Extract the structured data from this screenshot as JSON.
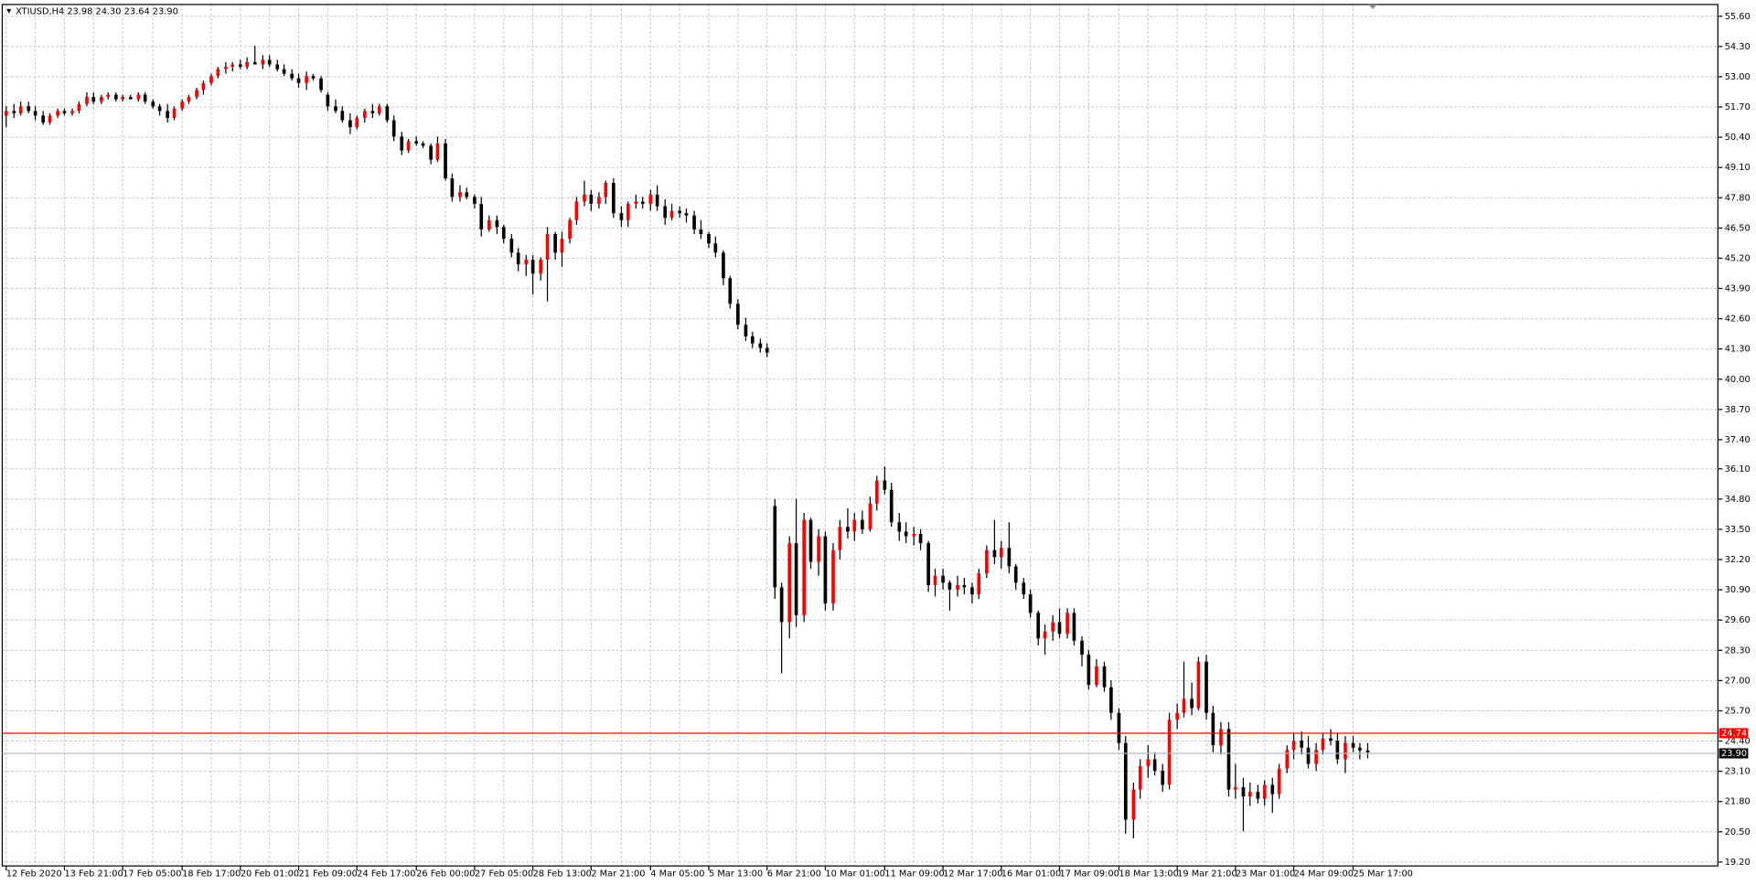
{
  "chart_data": {
    "type": "candlestick",
    "title": "XTIUSD,H4 23.98 24.30 23.64 23.90",
    "up_color": "#ff0000",
    "down_color": "#000000",
    "wick_color": "#000000",
    "grid": true,
    "ylim": [
      19.01,
      56.08
    ],
    "yticks": [
      {
        "value": 55.6,
        "label": "55.60"
      },
      {
        "value": 54.3,
        "label": "54.30"
      },
      {
        "value": 53.0,
        "label": "53.00"
      },
      {
        "value": 51.7,
        "label": "51.70"
      },
      {
        "value": 50.4,
        "label": "50.40"
      },
      {
        "value": 49.1,
        "label": "49.10"
      },
      {
        "value": 47.8,
        "label": "47.80"
      },
      {
        "value": 46.5,
        "label": "46.50"
      },
      {
        "value": 45.2,
        "label": "45.20"
      },
      {
        "value": 43.9,
        "label": "43.90"
      },
      {
        "value": 42.6,
        "label": "42.60"
      },
      {
        "value": 41.3,
        "label": "41.30"
      },
      {
        "value": 40.0,
        "label": "40.00"
      },
      {
        "value": 38.7,
        "label": "38.70"
      },
      {
        "value": 37.4,
        "label": "37.40"
      },
      {
        "value": 36.1,
        "label": "36.10"
      },
      {
        "value": 34.8,
        "label": "34.80"
      },
      {
        "value": 33.5,
        "label": "33.50"
      },
      {
        "value": 32.2,
        "label": "32.20"
      },
      {
        "value": 30.9,
        "label": "30.90"
      },
      {
        "value": 29.6,
        "label": "29.60"
      },
      {
        "value": 28.3,
        "label": "28.30"
      },
      {
        "value": 27.0,
        "label": "27.00"
      },
      {
        "value": 25.7,
        "label": "25.70"
      },
      {
        "value": 24.4,
        "label": "24.40"
      },
      {
        "value": 23.1,
        "label": "23.10"
      },
      {
        "value": 21.8,
        "label": "21.80"
      },
      {
        "value": 20.5,
        "label": "20.50"
      },
      {
        "value": 19.2,
        "label": "19.20"
      }
    ],
    "price_lines": [
      {
        "value": 24.74,
        "label": "24.74",
        "color": "#ff0000"
      },
      {
        "value": 23.9,
        "label": "23.90",
        "color": "#b0b8c8"
      }
    ],
    "categories": [
      "12 Feb 2020",
      null,
      null,
      null,
      null,
      null,
      null,
      null,
      "13 Feb 21:00",
      null,
      null,
      null,
      null,
      null,
      null,
      null,
      "17 Feb 05:00",
      null,
      null,
      null,
      null,
      null,
      null,
      null,
      "18 Feb 17:00",
      null,
      null,
      null,
      null,
      null,
      null,
      null,
      "20 Feb 01:00",
      null,
      null,
      null,
      null,
      null,
      null,
      null,
      "21 Feb 09:00",
      null,
      null,
      null,
      null,
      null,
      null,
      null,
      "24 Feb 17:00",
      null,
      null,
      null,
      null,
      null,
      null,
      null,
      "26 Feb 00:00",
      null,
      null,
      null,
      null,
      null,
      null,
      null,
      "27 Feb 05:00",
      null,
      null,
      null,
      null,
      null,
      null,
      null,
      "28 Feb 13:00",
      null,
      null,
      null,
      null,
      null,
      null,
      null,
      "2 Mar 21:00",
      null,
      null,
      null,
      null,
      null,
      null,
      null,
      "4 Mar 05:00",
      null,
      null,
      null,
      null,
      null,
      null,
      null,
      "5 Mar 13:00",
      null,
      null,
      null,
      null,
      null,
      null,
      null,
      "6 Mar 21:00",
      null,
      null,
      null,
      null,
      null,
      null,
      null,
      "10 Mar 01:00",
      null,
      null,
      null,
      null,
      null,
      null,
      null,
      "11 Mar 09:00",
      null,
      null,
      null,
      null,
      null,
      null,
      null,
      "12 Mar 17:00",
      null,
      null,
      null,
      null,
      null,
      null,
      null,
      "16 Mar 01:00",
      null,
      null,
      null,
      null,
      null,
      null,
      null,
      "17 Mar 09:00",
      null,
      null,
      null,
      null,
      null,
      null,
      null,
      "18 Mar 13:00",
      null,
      null,
      null,
      null,
      null,
      null,
      null,
      "19 Mar 21:00",
      null,
      null,
      null,
      null,
      null,
      null,
      null,
      "23 Mar 01:00",
      null,
      null,
      null,
      null,
      null,
      null,
      null,
      "24 Mar 09:00",
      null,
      null,
      null,
      null,
      null,
      null,
      null,
      "25 Mar 17:00",
      null,
      null
    ],
    "ohlc": [
      [
        51.3,
        51.7,
        50.8,
        51.5
      ],
      [
        51.5,
        51.8,
        51.2,
        51.4
      ],
      [
        51.4,
        51.9,
        51.3,
        51.7
      ],
      [
        51.7,
        51.9,
        51.4,
        51.5
      ],
      [
        51.5,
        51.7,
        51.1,
        51.3
      ],
      [
        51.3,
        51.5,
        50.9,
        51.0
      ],
      [
        51.0,
        51.4,
        50.9,
        51.3
      ],
      [
        51.3,
        51.6,
        51.2,
        51.5
      ],
      [
        51.5,
        51.6,
        51.3,
        51.4
      ],
      [
        51.4,
        51.6,
        51.3,
        51.5
      ],
      [
        51.5,
        51.9,
        51.4,
        51.8
      ],
      [
        51.8,
        52.3,
        51.7,
        52.1
      ],
      [
        52.1,
        52.3,
        51.8,
        51.9
      ],
      [
        51.9,
        52.2,
        51.8,
        52.1
      ],
      [
        52.1,
        52.3,
        52.0,
        52.2
      ],
      [
        52.2,
        52.3,
        51.9,
        52.0
      ],
      [
        52.0,
        52.2,
        51.9,
        52.1
      ],
      [
        52.1,
        52.2,
        52.0,
        52.0
      ],
      [
        52.0,
        52.3,
        51.9,
        52.2
      ],
      [
        52.2,
        52.3,
        51.8,
        51.9
      ],
      [
        51.9,
        52.0,
        51.6,
        51.7
      ],
      [
        51.7,
        51.8,
        51.3,
        51.5
      ],
      [
        51.5,
        51.8,
        51.0,
        51.2
      ],
      [
        51.2,
        51.7,
        51.1,
        51.6
      ],
      [
        51.6,
        52.0,
        51.5,
        51.9
      ],
      [
        51.9,
        52.2,
        51.8,
        52.1
      ],
      [
        52.1,
        52.5,
        52.0,
        52.4
      ],
      [
        52.4,
        52.8,
        52.2,
        52.7
      ],
      [
        52.7,
        53.1,
        52.6,
        53.0
      ],
      [
        53.0,
        53.4,
        52.9,
        53.3
      ],
      [
        53.3,
        53.6,
        53.1,
        53.4
      ],
      [
        53.4,
        53.6,
        53.2,
        53.5
      ],
      [
        53.5,
        53.7,
        53.3,
        53.4
      ],
      [
        53.4,
        53.8,
        53.3,
        53.6
      ],
      [
        53.6,
        54.3,
        53.5,
        53.5
      ],
      [
        53.5,
        53.9,
        53.3,
        53.7
      ],
      [
        53.7,
        53.9,
        53.4,
        53.5
      ],
      [
        53.5,
        53.7,
        53.2,
        53.3
      ],
      [
        53.3,
        53.5,
        53.0,
        53.1
      ],
      [
        53.1,
        53.3,
        52.8,
        52.9
      ],
      [
        52.9,
        53.1,
        52.5,
        52.7
      ],
      [
        52.7,
        53.2,
        52.4,
        53.0
      ],
      [
        53.0,
        53.1,
        52.8,
        52.9
      ],
      [
        52.9,
        53.0,
        52.3,
        52.4
      ],
      [
        52.2,
        52.3,
        51.5,
        51.7
      ],
      [
        51.7,
        52.0,
        51.4,
        51.5
      ],
      [
        51.5,
        51.7,
        51.0,
        51.1
      ],
      [
        51.1,
        51.4,
        50.5,
        50.8
      ],
      [
        50.8,
        51.3,
        50.7,
        51.2
      ],
      [
        51.2,
        51.6,
        51.0,
        51.5
      ],
      [
        51.5,
        51.8,
        51.2,
        51.4
      ],
      [
        51.4,
        51.8,
        51.3,
        51.7
      ],
      [
        51.7,
        51.8,
        51.0,
        51.1
      ],
      [
        51.1,
        51.3,
        50.2,
        50.4
      ],
      [
        50.4,
        50.6,
        49.6,
        49.8
      ],
      [
        49.8,
        50.3,
        49.7,
        50.2
      ],
      [
        50.2,
        50.4,
        50.0,
        50.1
      ],
      [
        50.1,
        50.2,
        49.9,
        50.0
      ],
      [
        50.0,
        50.1,
        49.2,
        49.4
      ],
      [
        49.4,
        50.4,
        49.3,
        50.1
      ],
      [
        50.1,
        50.3,
        48.5,
        48.6
      ],
      [
        48.6,
        48.8,
        47.6,
        47.8
      ],
      [
        47.8,
        48.3,
        47.6,
        48.0
      ],
      [
        48.0,
        48.2,
        47.7,
        47.8
      ],
      [
        47.8,
        47.9,
        47.3,
        47.5
      ],
      [
        47.5,
        47.8,
        46.1,
        46.4
      ],
      [
        46.4,
        47.0,
        46.3,
        46.8
      ],
      [
        46.8,
        47.0,
        46.2,
        46.5
      ],
      [
        46.5,
        46.6,
        45.8,
        46.0
      ],
      [
        46.0,
        46.2,
        45.2,
        45.4
      ],
      [
        45.4,
        45.6,
        44.6,
        44.9
      ],
      [
        44.9,
        45.3,
        44.4,
        45.1
      ],
      [
        45.1,
        45.3,
        43.6,
        44.5
      ],
      [
        44.5,
        45.2,
        44.2,
        45.1
      ],
      [
        45.1,
        46.5,
        43.3,
        46.2
      ],
      [
        46.2,
        46.3,
        45.1,
        45.4
      ],
      [
        45.4,
        46.3,
        44.8,
        46.0
      ],
      [
        46.0,
        46.9,
        45.8,
        46.8
      ],
      [
        46.8,
        47.8,
        46.6,
        47.6
      ],
      [
        47.6,
        48.5,
        47.4,
        47.9
      ],
      [
        47.9,
        48.1,
        47.2,
        47.5
      ],
      [
        47.5,
        48.0,
        47.3,
        47.8
      ],
      [
        47.8,
        48.5,
        47.5,
        48.4
      ],
      [
        48.4,
        48.6,
        46.9,
        47.1
      ],
      [
        47.1,
        47.4,
        46.5,
        46.8
      ],
      [
        46.8,
        47.6,
        46.5,
        47.5
      ],
      [
        47.5,
        47.9,
        47.3,
        47.6
      ],
      [
        47.6,
        47.8,
        47.3,
        47.5
      ],
      [
        47.5,
        48.1,
        47.2,
        47.9
      ],
      [
        47.9,
        48.3,
        47.2,
        47.4
      ],
      [
        47.4,
        47.7,
        46.6,
        46.9
      ],
      [
        46.9,
        47.5,
        46.8,
        47.2
      ],
      [
        47.2,
        47.4,
        46.9,
        47.1
      ],
      [
        47.1,
        47.3,
        46.7,
        47.0
      ],
      [
        47.0,
        47.2,
        46.2,
        46.4
      ],
      [
        46.4,
        46.8,
        46.0,
        46.2
      ],
      [
        46.2,
        46.3,
        45.6,
        45.8
      ],
      [
        45.8,
        46.1,
        45.2,
        45.4
      ],
      [
        45.4,
        45.5,
        44.0,
        44.3
      ],
      [
        44.3,
        44.4,
        43.0,
        43.2
      ],
      [
        43.2,
        43.4,
        42.1,
        42.3
      ],
      [
        42.3,
        42.6,
        41.6,
        41.8
      ],
      [
        41.8,
        42.0,
        41.3,
        41.5
      ],
      [
        41.5,
        41.7,
        41.1,
        41.3
      ],
      [
        41.3,
        41.5,
        40.9,
        41.1
      ],
      [
        34.5,
        34.8,
        30.5,
        31.0
      ],
      [
        31.0,
        31.2,
        27.3,
        29.5
      ],
      [
        29.5,
        33.2,
        28.8,
        32.9
      ],
      [
        32.9,
        34.8,
        29.3,
        29.8
      ],
      [
        29.8,
        34.2,
        29.5,
        33.9
      ],
      [
        33.9,
        34.0,
        31.8,
        32.1
      ],
      [
        32.1,
        33.5,
        31.5,
        33.2
      ],
      [
        33.2,
        33.4,
        30.0,
        30.3
      ],
      [
        30.3,
        32.9,
        30.0,
        32.6
      ],
      [
        32.6,
        33.9,
        32.2,
        33.6
      ],
      [
        33.6,
        34.4,
        33.1,
        33.4
      ],
      [
        33.4,
        34.2,
        33.0,
        33.9
      ],
      [
        33.9,
        34.3,
        33.3,
        33.5
      ],
      [
        33.5,
        34.9,
        33.4,
        34.6
      ],
      [
        34.6,
        35.8,
        34.3,
        35.6
      ],
      [
        35.6,
        36.2,
        35.0,
        35.2
      ],
      [
        35.2,
        35.5,
        33.6,
        33.8
      ],
      [
        33.8,
        34.2,
        33.0,
        33.4
      ],
      [
        33.4,
        33.8,
        32.9,
        33.2
      ],
      [
        33.2,
        33.6,
        32.8,
        33.3
      ],
      [
        33.3,
        33.5,
        32.6,
        32.9
      ],
      [
        32.9,
        33.0,
        30.8,
        31.1
      ],
      [
        31.1,
        31.8,
        30.6,
        31.5
      ],
      [
        31.5,
        31.8,
        30.9,
        31.2
      ],
      [
        31.2,
        31.3,
        30.0,
        30.9
      ],
      [
        30.9,
        31.5,
        30.6,
        31.1
      ],
      [
        31.1,
        31.4,
        30.7,
        31.0
      ],
      [
        31.0,
        31.2,
        30.3,
        30.7
      ],
      [
        30.7,
        31.8,
        30.5,
        31.6
      ],
      [
        31.6,
        32.8,
        31.4,
        32.6
      ],
      [
        32.6,
        33.9,
        32.0,
        32.3
      ],
      [
        32.3,
        33.0,
        31.8,
        32.7
      ],
      [
        32.7,
        33.8,
        31.6,
        31.9
      ],
      [
        31.9,
        32.0,
        30.9,
        31.2
      ],
      [
        31.2,
        31.4,
        30.5,
        30.7
      ],
      [
        30.7,
        30.9,
        29.7,
        29.9
      ],
      [
        29.9,
        30.0,
        28.5,
        28.8
      ],
      [
        28.8,
        29.4,
        28.1,
        29.1
      ],
      [
        29.1,
        29.8,
        28.7,
        29.5
      ],
      [
        29.5,
        30.1,
        28.8,
        29.0
      ],
      [
        29.0,
        30.1,
        28.8,
        29.9
      ],
      [
        29.9,
        30.1,
        28.5,
        28.7
      ],
      [
        28.7,
        28.9,
        27.6,
        28.1
      ],
      [
        28.1,
        28.3,
        26.6,
        26.8
      ],
      [
        26.8,
        27.9,
        26.7,
        27.6
      ],
      [
        27.6,
        27.8,
        26.5,
        26.7
      ],
      [
        26.7,
        27.0,
        25.3,
        25.6
      ],
      [
        25.6,
        25.8,
        24.0,
        24.3
      ],
      [
        24.3,
        24.6,
        20.4,
        21.0
      ],
      [
        21.0,
        22.6,
        20.2,
        22.3
      ],
      [
        22.3,
        23.6,
        21.9,
        23.3
      ],
      [
        23.3,
        24.2,
        22.8,
        23.6
      ],
      [
        23.6,
        23.9,
        22.9,
        23.1
      ],
      [
        23.1,
        23.4,
        22.2,
        22.5
      ],
      [
        22.5,
        25.6,
        22.3,
        25.3
      ],
      [
        25.3,
        26.0,
        24.9,
        25.6
      ],
      [
        25.6,
        27.8,
        25.4,
        26.2
      ],
      [
        26.2,
        26.9,
        25.5,
        25.8
      ],
      [
        25.8,
        28.0,
        25.7,
        27.8
      ],
      [
        27.8,
        28.1,
        25.3,
        25.6
      ],
      [
        25.6,
        25.9,
        23.9,
        24.2
      ],
      [
        24.2,
        25.2,
        23.8,
        24.9
      ],
      [
        24.9,
        25.2,
        22.0,
        22.3
      ],
      [
        22.3,
        23.4,
        21.9,
        22.4
      ],
      [
        22.4,
        22.8,
        20.5,
        22.0
      ],
      [
        22.0,
        22.6,
        21.6,
        22.2
      ],
      [
        22.2,
        22.5,
        21.7,
        21.9
      ],
      [
        21.9,
        22.7,
        21.6,
        22.5
      ],
      [
        22.5,
        22.8,
        21.3,
        22.1
      ],
      [
        22.1,
        23.4,
        21.9,
        23.2
      ],
      [
        23.2,
        24.2,
        23.0,
        24.0
      ],
      [
        24.0,
        24.7,
        23.6,
        24.4
      ],
      [
        24.4,
        24.8,
        23.8,
        24.1
      ],
      [
        24.1,
        24.6,
        23.2,
        23.4
      ],
      [
        23.4,
        24.3,
        23.1,
        24.0
      ],
      [
        24.0,
        24.7,
        23.8,
        24.5
      ],
      [
        24.5,
        24.9,
        24.2,
        24.4
      ],
      [
        24.4,
        24.7,
        23.4,
        23.6
      ],
      [
        23.6,
        24.6,
        23.0,
        24.3
      ],
      [
        24.3,
        24.6,
        23.9,
        24.1
      ],
      [
        24.1,
        24.3,
        23.6,
        23.98
      ],
      [
        23.98,
        24.3,
        23.64,
        23.9
      ]
    ]
  }
}
